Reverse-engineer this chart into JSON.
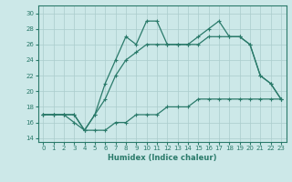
{
  "xlabel": "Humidex (Indice chaleur)",
  "bg_color": "#cce8e8",
  "grid_color": "#aacccc",
  "line_color": "#2a7a6a",
  "xlim": [
    -0.5,
    23.5
  ],
  "ylim": [
    13.5,
    31.0
  ],
  "xticks": [
    0,
    1,
    2,
    3,
    4,
    5,
    6,
    7,
    8,
    9,
    10,
    11,
    12,
    13,
    14,
    15,
    16,
    17,
    18,
    19,
    20,
    21,
    22,
    23
  ],
  "yticks": [
    14,
    16,
    18,
    20,
    22,
    24,
    26,
    28,
    30
  ],
  "line_min_x": [
    0,
    1,
    2,
    3,
    4,
    5,
    6,
    7,
    8,
    9,
    10,
    11,
    12,
    13,
    14,
    15,
    16,
    17,
    18,
    19,
    20,
    21,
    22,
    23
  ],
  "line_min_y": [
    17,
    17,
    17,
    17,
    15,
    15,
    15,
    16,
    16,
    17,
    17,
    17,
    18,
    18,
    18,
    19,
    19,
    19,
    19,
    19,
    19,
    19,
    19,
    19
  ],
  "line_mid_x": [
    0,
    1,
    2,
    3,
    4,
    5,
    6,
    7,
    8,
    9,
    10,
    11,
    12,
    13,
    14,
    15,
    16,
    17,
    18,
    19,
    20,
    21,
    22,
    23
  ],
  "line_mid_y": [
    17,
    17,
    17,
    17,
    15,
    17,
    19,
    22,
    24,
    25,
    26,
    26,
    26,
    26,
    26,
    26,
    27,
    27,
    27,
    27,
    26,
    22,
    21,
    19
  ],
  "line_max_x": [
    0,
    1,
    2,
    3,
    4,
    5,
    6,
    7,
    8,
    9,
    10,
    11,
    12,
    13,
    14,
    15,
    16,
    17,
    18,
    19,
    20,
    21,
    22,
    23
  ],
  "line_max_y": [
    17,
    17,
    17,
    16,
    15,
    17,
    21,
    24,
    27,
    26,
    29,
    29,
    26,
    26,
    26,
    27,
    28,
    29,
    27,
    27,
    26,
    22,
    21,
    19
  ]
}
